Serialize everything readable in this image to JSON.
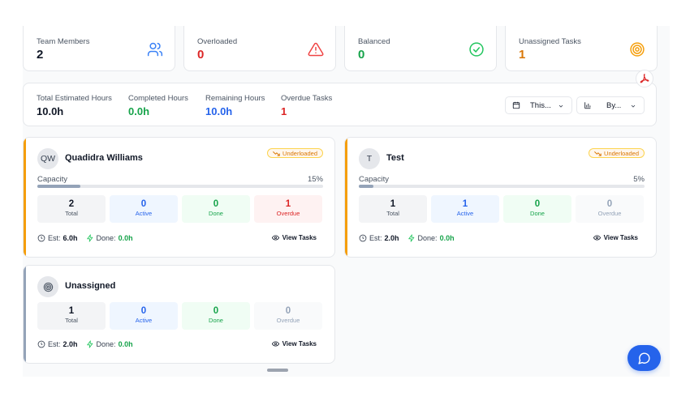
{
  "stats": [
    {
      "label": "Team Members",
      "value": "2",
      "icon": "users-icon",
      "color": "#111827"
    },
    {
      "label": "Overloaded",
      "value": "0",
      "icon": "warning-icon",
      "color": "#dc2626"
    },
    {
      "label": "Balanced",
      "value": "0",
      "icon": "check-circle-icon",
      "color": "#16a34a"
    },
    {
      "label": "Unassigned Tasks",
      "value": "1",
      "icon": "target-icon",
      "color": "#d97706"
    }
  ],
  "summary": {
    "total_estimated": {
      "label": "Total Estimated Hours",
      "value": "10.0h"
    },
    "completed": {
      "label": "Completed Hours",
      "value": "0.0h"
    },
    "remaining": {
      "label": "Remaining Hours",
      "value": "10.0h"
    },
    "overdue": {
      "label": "Overdue Tasks",
      "value": "1"
    },
    "filters": {
      "date_range": "This...",
      "group_by": "By..."
    }
  },
  "members": [
    {
      "initials": "QW",
      "name": "Quadidra Williams",
      "badge": "Underloaded",
      "capacity_label": "Capacity",
      "capacity_pct": "15%",
      "capacity_fraction": 0.15,
      "stats": {
        "total": "2",
        "total_label": "Total",
        "active": "0",
        "active_label": "Active",
        "done": "0",
        "done_label": "Done",
        "overdue": "1",
        "overdue_label": "Overdue"
      },
      "est_label": "Est:",
      "est": "6.0h",
      "done_label": "Done:",
      "done_hours": "0.0h",
      "view_tasks": "View Tasks"
    },
    {
      "initials": "T",
      "name": "Test",
      "badge": "Underloaded",
      "capacity_label": "Capacity",
      "capacity_pct": "5%",
      "capacity_fraction": 0.05,
      "stats": {
        "total": "1",
        "total_label": "Total",
        "active": "1",
        "active_label": "Active",
        "done": "0",
        "done_label": "Done",
        "overdue": "0",
        "overdue_label": "Overdue"
      },
      "est_label": "Est:",
      "est": "2.0h",
      "done_label": "Done:",
      "done_hours": "0.0h",
      "view_tasks": "View Tasks"
    }
  ],
  "unassigned": {
    "name": "Unassigned",
    "stats": {
      "total": "1",
      "total_label": "Total",
      "active": "0",
      "active_label": "Active",
      "done": "0",
      "done_label": "Done",
      "overdue": "0",
      "overdue_label": "Overdue"
    },
    "est_label": "Est:",
    "est": "2.0h",
    "done_label": "Done:",
    "done_hours": "0.0h",
    "view_tasks": "View Tasks"
  },
  "colors": {
    "accent_orange": "#f59e0b",
    "accent_slate": "#94a3b8",
    "chat": "#2563eb",
    "pdf": "#dc2626"
  }
}
